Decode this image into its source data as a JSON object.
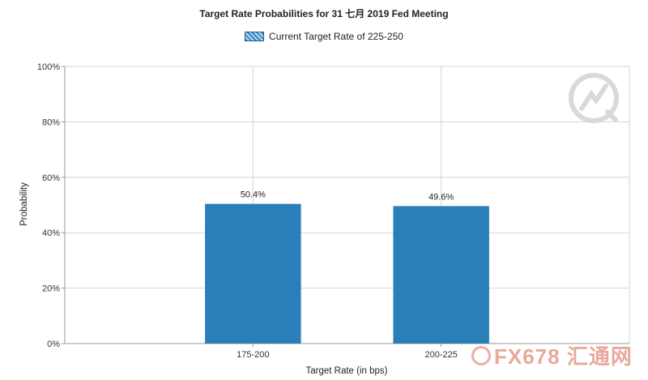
{
  "chart_data": {
    "type": "bar",
    "title": "Target Rate Probabilities for 31 七月 2019  Fed Meeting",
    "legend": {
      "position": "top-center",
      "entries": [
        "Current Target Rate of 225-250"
      ]
    },
    "categories": [
      "175-200",
      "200-225"
    ],
    "series": [
      {
        "name": "Current Target Rate of 225-250",
        "values": [
          50.4,
          49.6
        ]
      }
    ],
    "data_labels": [
      "50.4%",
      "49.6%"
    ],
    "xlabel": "Target Rate (in bps)",
    "ylabel": "Probability",
    "ylim": [
      0,
      100
    ],
    "y_ticks": [
      "0%",
      "20%",
      "40%",
      "60%",
      "80%",
      "100%"
    ],
    "grid": true,
    "colors": {
      "bar": "#2980b9",
      "grid": "#d4d4d4",
      "axis": "#999999"
    }
  },
  "watermark": {
    "brand_text": "FX678 汇通网"
  }
}
